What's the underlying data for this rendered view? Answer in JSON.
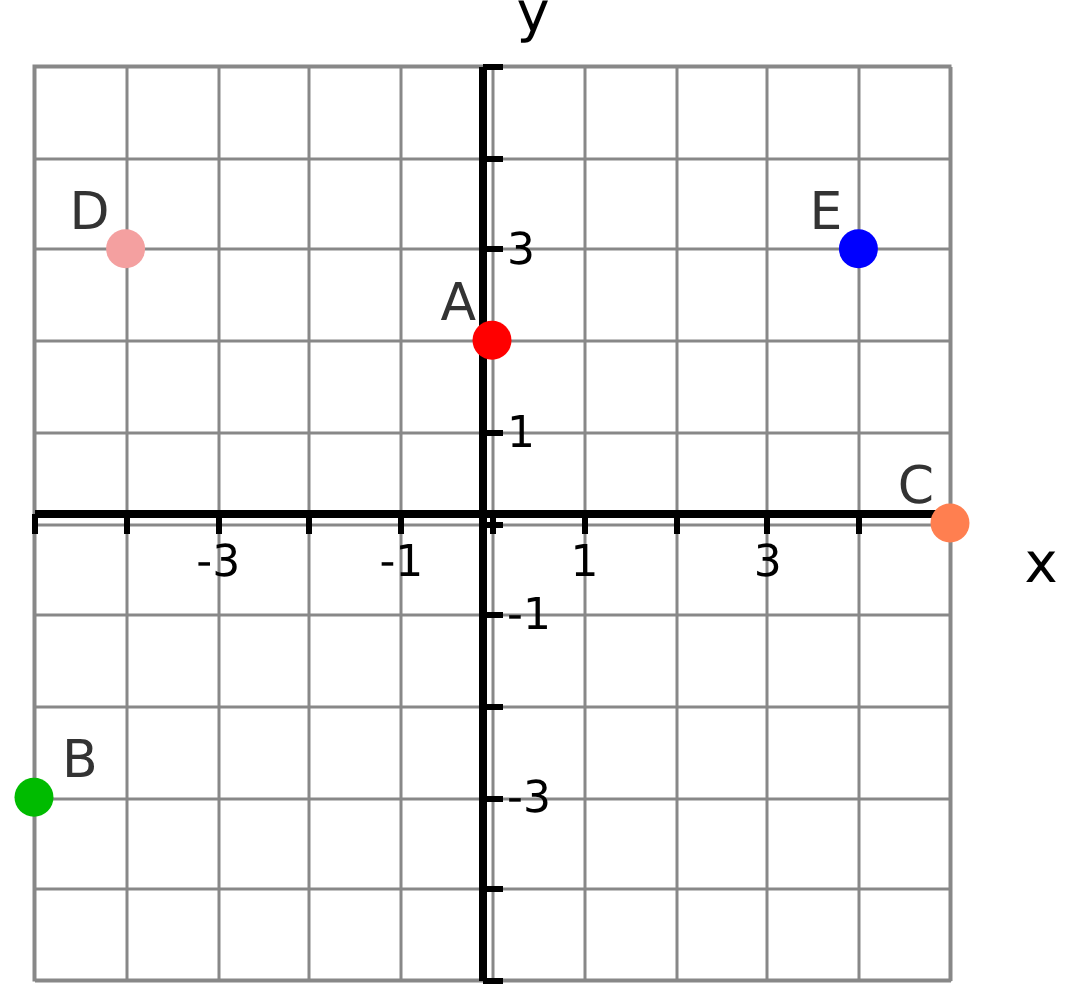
{
  "chart_data": {
    "type": "scatter",
    "xlabel": "x",
    "ylabel": "y",
    "x": [
      0,
      -5,
      5,
      -4,
      4
    ],
    "values": [
      2,
      -3,
      0,
      3,
      3
    ],
    "colors": [
      "#ff0000",
      "#00bb00",
      "#ff7f50",
      "#f4a0a0",
      "#0000ff"
    ],
    "marker": "circle",
    "grid": true,
    "xlim": [
      -5,
      5
    ],
    "ylim": [
      -5,
      5
    ],
    "xticks": [
      {
        "value": -5,
        "label": null
      },
      {
        "value": -4,
        "label": null
      },
      -3,
      {
        "value": -2,
        "label": null
      },
      -1,
      {
        "value": 0,
        "label": null
      },
      1,
      {
        "value": 2,
        "label": null
      },
      3,
      {
        "value": 4,
        "label": null
      },
      {
        "value": 5,
        "label": null
      }
    ],
    "yticks": [
      {
        "value": -5,
        "label": null
      },
      {
        "value": -4,
        "label": null
      },
      -3,
      {
        "value": -2,
        "label": null
      },
      -1,
      {
        "value": 0,
        "label": null
      },
      1,
      {
        "value": 2,
        "label": null
      },
      3,
      {
        "value": 4,
        "label": null
      },
      {
        "value": 5,
        "label": null
      }
    ],
    "annotations": [
      {
        "text": "A",
        "x": 0,
        "y": 2
      },
      {
        "text": "B",
        "x": -5,
        "y": -3
      },
      {
        "text": "C",
        "x": 5,
        "y": 0
      },
      {
        "text": "D",
        "x": -4,
        "y": 3
      },
      {
        "text": "E",
        "x": 4,
        "y": 3
      }
    ]
  }
}
